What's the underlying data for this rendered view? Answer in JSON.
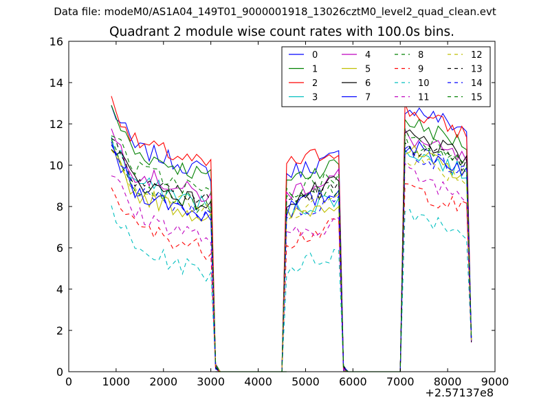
{
  "figure": {
    "suptitle": "Data file: modeM0/AS1A04_149T01_9000001918_13026cztM0_level2_quad_clean.evt",
    "title": "Quadrant 2 module wise count rates with 100.0s bins.",
    "x_offset_label": "+2.57137e8"
  },
  "chart_data": {
    "type": "line",
    "title": "Quadrant 2 module wise count rates with 100.0s bins.",
    "xlabel": "",
    "ylabel": "",
    "xlim": [
      0,
      9000
    ],
    "ylim": [
      0,
      16
    ],
    "x_offset": 257137000,
    "xticks": [
      0,
      1000,
      2000,
      3000,
      4000,
      5000,
      6000,
      7000,
      8000,
      9000
    ],
    "yticks": [
      0,
      2,
      4,
      6,
      8,
      10,
      12,
      14,
      16
    ],
    "grid": false,
    "legend_position": "top-right",
    "legend_columns": 4,
    "segments": [
      {
        "start": 900,
        "end": 3000
      },
      {
        "start": 4600,
        "end": 5700
      },
      {
        "start": 7100,
        "end": 8400
      }
    ],
    "series": [
      {
        "name": "0",
        "color": "#0000ff",
        "dash": "solid",
        "segment_levels": [
          11.2,
          10.2,
          12.1
        ]
      },
      {
        "name": "1",
        "color": "#008000",
        "dash": "solid",
        "segment_levels": [
          11.0,
          9.9,
          11.4
        ]
      },
      {
        "name": "2",
        "color": "#ff0000",
        "dash": "solid",
        "segment_levels": [
          11.5,
          10.6,
          11.9
        ]
      },
      {
        "name": "3",
        "color": "#00bfbf",
        "dash": "solid",
        "segment_levels": [
          9.6,
          8.3,
          10.0
        ]
      },
      {
        "name": "4",
        "color": "#bf00bf",
        "dash": "solid",
        "segment_levels": [
          10.0,
          9.3,
          10.6
        ]
      },
      {
        "name": "5",
        "color": "#bfbf00",
        "dash": "solid",
        "segment_levels": [
          9.0,
          8.1,
          9.9
        ]
      },
      {
        "name": "6",
        "color": "#000000",
        "dash": "solid",
        "segment_levels": [
          9.6,
          8.9,
          10.7
        ]
      },
      {
        "name": "7",
        "color": "#0000ff",
        "dash": "solid",
        "segment_levels": [
          9.1,
          8.5,
          10.2
        ]
      },
      {
        "name": "8",
        "color": "#008000",
        "dash": "dashed",
        "segment_levels": [
          9.5,
          8.7,
          10.3
        ]
      },
      {
        "name": "9",
        "color": "#ff0000",
        "dash": "dashed",
        "segment_levels": [
          7.4,
          6.9,
          8.2
        ]
      },
      {
        "name": "10",
        "color": "#00bfbf",
        "dash": "dashed",
        "segment_levels": [
          6.3,
          5.6,
          7.1
        ]
      },
      {
        "name": "11",
        "color": "#bf00bf",
        "dash": "dashed",
        "segment_levels": [
          8.0,
          7.1,
          8.9
        ]
      },
      {
        "name": "12",
        "color": "#bfbf00",
        "dash": "dashed",
        "segment_levels": [
          9.3,
          8.3,
          9.7
        ]
      },
      {
        "name": "13",
        "color": "#000000",
        "dash": "dashed",
        "segment_levels": [
          9.8,
          8.8,
          10.3
        ]
      },
      {
        "name": "14",
        "color": "#0000ff",
        "dash": "dashed",
        "segment_levels": [
          9.1,
          8.2,
          10.0
        ]
      },
      {
        "name": "15",
        "color": "#008000",
        "dash": "dashed",
        "segment_levels": [
          10.2,
          9.3,
          10.8
        ]
      }
    ]
  }
}
